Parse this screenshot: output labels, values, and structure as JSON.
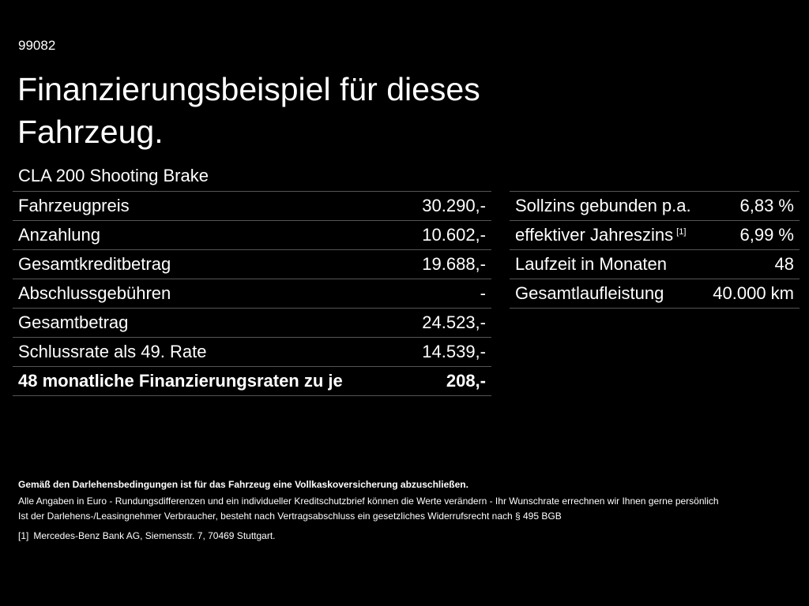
{
  "header": {
    "code": "99082",
    "title": "Finanzierungsbeispiel für dieses Fahrzeug.",
    "model": "CLA 200 Shooting Brake"
  },
  "financing_table": {
    "rows": [
      {
        "label": "Fahrzeugpreis",
        "value": "30.290,-"
      },
      {
        "label": "Anzahlung",
        "value": "10.602,-"
      },
      {
        "label": "Gesamtkreditbetrag",
        "value": "19.688,-"
      },
      {
        "label": "Abschlussgebühren",
        "value": "-"
      },
      {
        "label": "Gesamtbetrag",
        "value": "24.523,-"
      },
      {
        "label": "Schlussrate als 49. Rate",
        "value": "14.539,-"
      },
      {
        "label": "48 monatliche Finanzierungsraten zu je",
        "value": "208,-"
      }
    ]
  },
  "conditions_table": {
    "rows": [
      {
        "label": "Sollzins gebunden p.a.",
        "value": "6,83 %"
      },
      {
        "label": "effektiver Jahreszins",
        "note": "[1]",
        "value": "6,99 %"
      },
      {
        "label": "Laufzeit in Monaten",
        "value": "48"
      },
      {
        "label": "Gesamtlaufleistung",
        "value": "40.000 km"
      }
    ]
  },
  "footer": {
    "notice": "Gemäß den Darlehensbedingungen ist für das Fahrzeug eine Vollkaskoversicherung abzuschließen.",
    "lines": [
      "Alle Angaben in Euro - Rundungsdifferenzen und ein individueller Kreditschutzbrief können die Werte verändern - Ihr Wunschrate errechnen wir Ihnen gerne persönlich",
      "Ist der Darlehens-/Leasingnehmer Verbraucher, besteht nach Vertragsabschluss ein gesetzliches Widerrufsrecht nach § 495 BGB"
    ],
    "footnote": {
      "marker": "[1]",
      "text": "Mercedes-Benz Bank AG, Siemensstr. 7, 70469 Stuttgart."
    }
  }
}
